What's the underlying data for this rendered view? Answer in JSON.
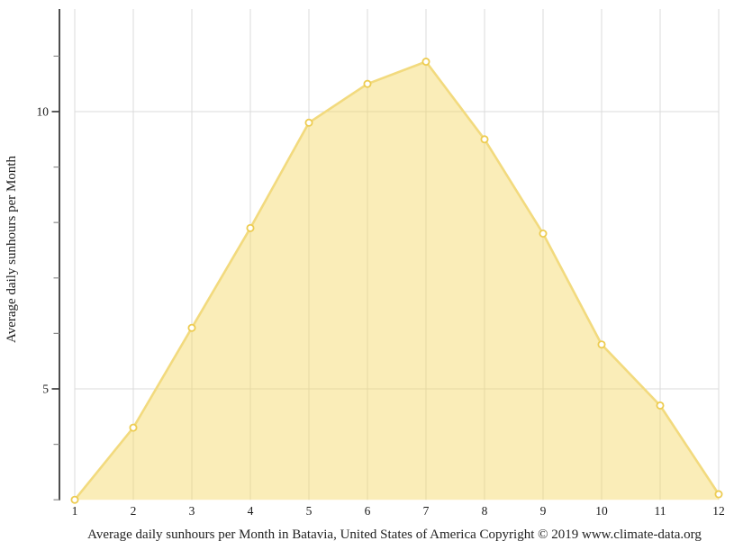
{
  "chart_data": {
    "type": "area",
    "title": "",
    "x": [
      1,
      2,
      3,
      4,
      5,
      6,
      7,
      8,
      9,
      10,
      11,
      12
    ],
    "x_tick_labels": [
      "1",
      "2",
      "3",
      "4",
      "5",
      "6",
      "7",
      "8",
      "9",
      "10",
      "11",
      "12"
    ],
    "series": [
      {
        "name": "Average daily sunhours",
        "values": [
          3.0,
          4.3,
          6.1,
          7.9,
          9.8,
          10.5,
          10.9,
          9.5,
          7.8,
          5.8,
          4.7,
          3.1
        ]
      }
    ],
    "xlabel": "",
    "ylabel": "Average daily sunhours per Month",
    "caption": "Average daily sunhours per Month in Batavia, United States of America Copyright © 2019 www.climate-data.org",
    "ylim": [
      3.0,
      11.85
    ],
    "yticks_major": [
      5,
      10
    ],
    "yticks_major_labels": [
      "5",
      "10"
    ],
    "yticks_minor": [
      3,
      4,
      6,
      7,
      8,
      9,
      11
    ],
    "grid": "on",
    "legend": "none",
    "marker": "circle-open",
    "colors": {
      "area_fill": "rgba(244,216,98,0.45)",
      "line": "#F2DA7E",
      "marker_fill": "#FFFFFF",
      "marker_stroke": "#EDCC52",
      "gridline": "#DBDBDB",
      "axis_line": "#4D4D4D",
      "tick_major": "#333333",
      "tick_minor": "#8C8C8C",
      "text": "#1A1A1A"
    }
  }
}
